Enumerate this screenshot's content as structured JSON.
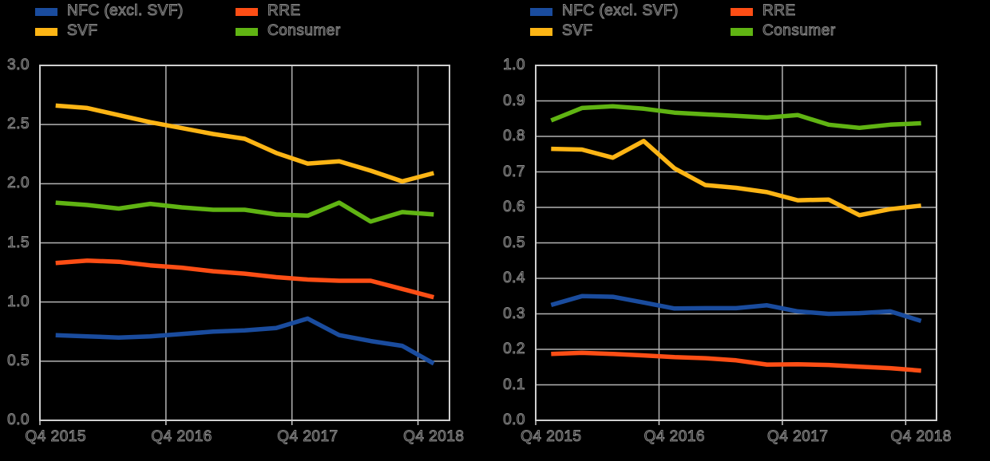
{
  "colors": {
    "background": "#000000",
    "gridline": "#b3b3b3",
    "border": "#cfcfcf",
    "text_outline": "#8c8c8c",
    "blue": "#1a4c9e",
    "orange": "#fd4e15",
    "yellow": "#fdb515",
    "green": "#60b413"
  },
  "legend": {
    "items": [
      {
        "label": "NFC (excl. SVF)",
        "color": "#1a4c9e"
      },
      {
        "label": "RRE",
        "color": "#fd4e15"
      },
      {
        "label": "SVF",
        "color": "#fdb515"
      },
      {
        "label": "Consumer",
        "color": "#60b413"
      }
    ]
  },
  "chart_data": [
    {
      "type": "line",
      "title": "",
      "xlabel": "",
      "ylabel": "",
      "ylim": [
        0.0,
        3.0
      ],
      "grid": true,
      "legend_position": "top",
      "n_points": 13,
      "x_tick_labels": [
        "Q4 2015",
        "Q4 2016",
        "Q4 2017",
        "Q4 2018"
      ],
      "x_tick_indices": [
        0,
        4,
        8,
        12
      ],
      "y_tick_labels": [
        "3.0",
        "2.5",
        "2.0",
        "1.5",
        "1.0",
        "0.5",
        "0.0"
      ],
      "series": [
        {
          "name": "NFC (excl. SVF)",
          "color": "#1a4c9e",
          "values": [
            0.72,
            0.71,
            0.7,
            0.71,
            0.73,
            0.75,
            0.76,
            0.78,
            0.86,
            0.72,
            0.67,
            0.63,
            0.48
          ]
        },
        {
          "name": "RRE",
          "color": "#fd4e15",
          "values": [
            1.33,
            1.35,
            1.34,
            1.31,
            1.29,
            1.26,
            1.24,
            1.21,
            1.19,
            1.18,
            1.18,
            1.11,
            1.04
          ]
        },
        {
          "name": "SVF",
          "color": "#fdb515",
          "values": [
            2.66,
            2.64,
            2.58,
            2.52,
            2.47,
            2.42,
            2.38,
            2.26,
            2.17,
            2.19,
            2.11,
            2.02,
            2.09
          ]
        },
        {
          "name": "Consumer",
          "color": "#60b413",
          "values": [
            1.84,
            1.82,
            1.79,
            1.83,
            1.8,
            1.78,
            1.78,
            1.74,
            1.73,
            1.84,
            1.68,
            1.76,
            1.74
          ]
        }
      ]
    },
    {
      "type": "line",
      "title": "",
      "xlabel": "",
      "ylabel": "",
      "ylim": [
        0.0,
        1.0
      ],
      "grid": true,
      "legend_position": "top",
      "n_points": 13,
      "x_tick_labels": [
        "Q4 2015",
        "Q4 2016",
        "Q4 2017",
        "Q4 2018"
      ],
      "x_tick_indices": [
        0,
        4,
        8,
        12
      ],
      "y_tick_labels": [
        "1.0",
        "0.9",
        "0.8",
        "0.7",
        "0.6",
        "0.5",
        "0.4",
        "0.3",
        "0.2",
        "0.1",
        "0.0"
      ],
      "series": [
        {
          "name": "NFC (excl. SVF)",
          "color": "#1a4c9e",
          "values": [
            0.325,
            0.35,
            0.348,
            0.332,
            0.315,
            0.316,
            0.316,
            0.324,
            0.307,
            0.3,
            0.302,
            0.307,
            0.28
          ]
        },
        {
          "name": "RRE",
          "color": "#fd4e15",
          "values": [
            0.187,
            0.19,
            0.187,
            0.183,
            0.178,
            0.175,
            0.169,
            0.157,
            0.158,
            0.156,
            0.151,
            0.147,
            0.14
          ]
        },
        {
          "name": "SVF",
          "color": "#fdb515",
          "values": [
            0.765,
            0.763,
            0.74,
            0.787,
            0.71,
            0.663,
            0.655,
            0.643,
            0.62,
            0.622,
            0.578,
            0.595,
            0.605
          ]
        },
        {
          "name": "Consumer",
          "color": "#60b413",
          "values": [
            0.845,
            0.88,
            0.885,
            0.878,
            0.867,
            0.862,
            0.858,
            0.853,
            0.86,
            0.833,
            0.824,
            0.833,
            0.837
          ]
        }
      ]
    }
  ]
}
